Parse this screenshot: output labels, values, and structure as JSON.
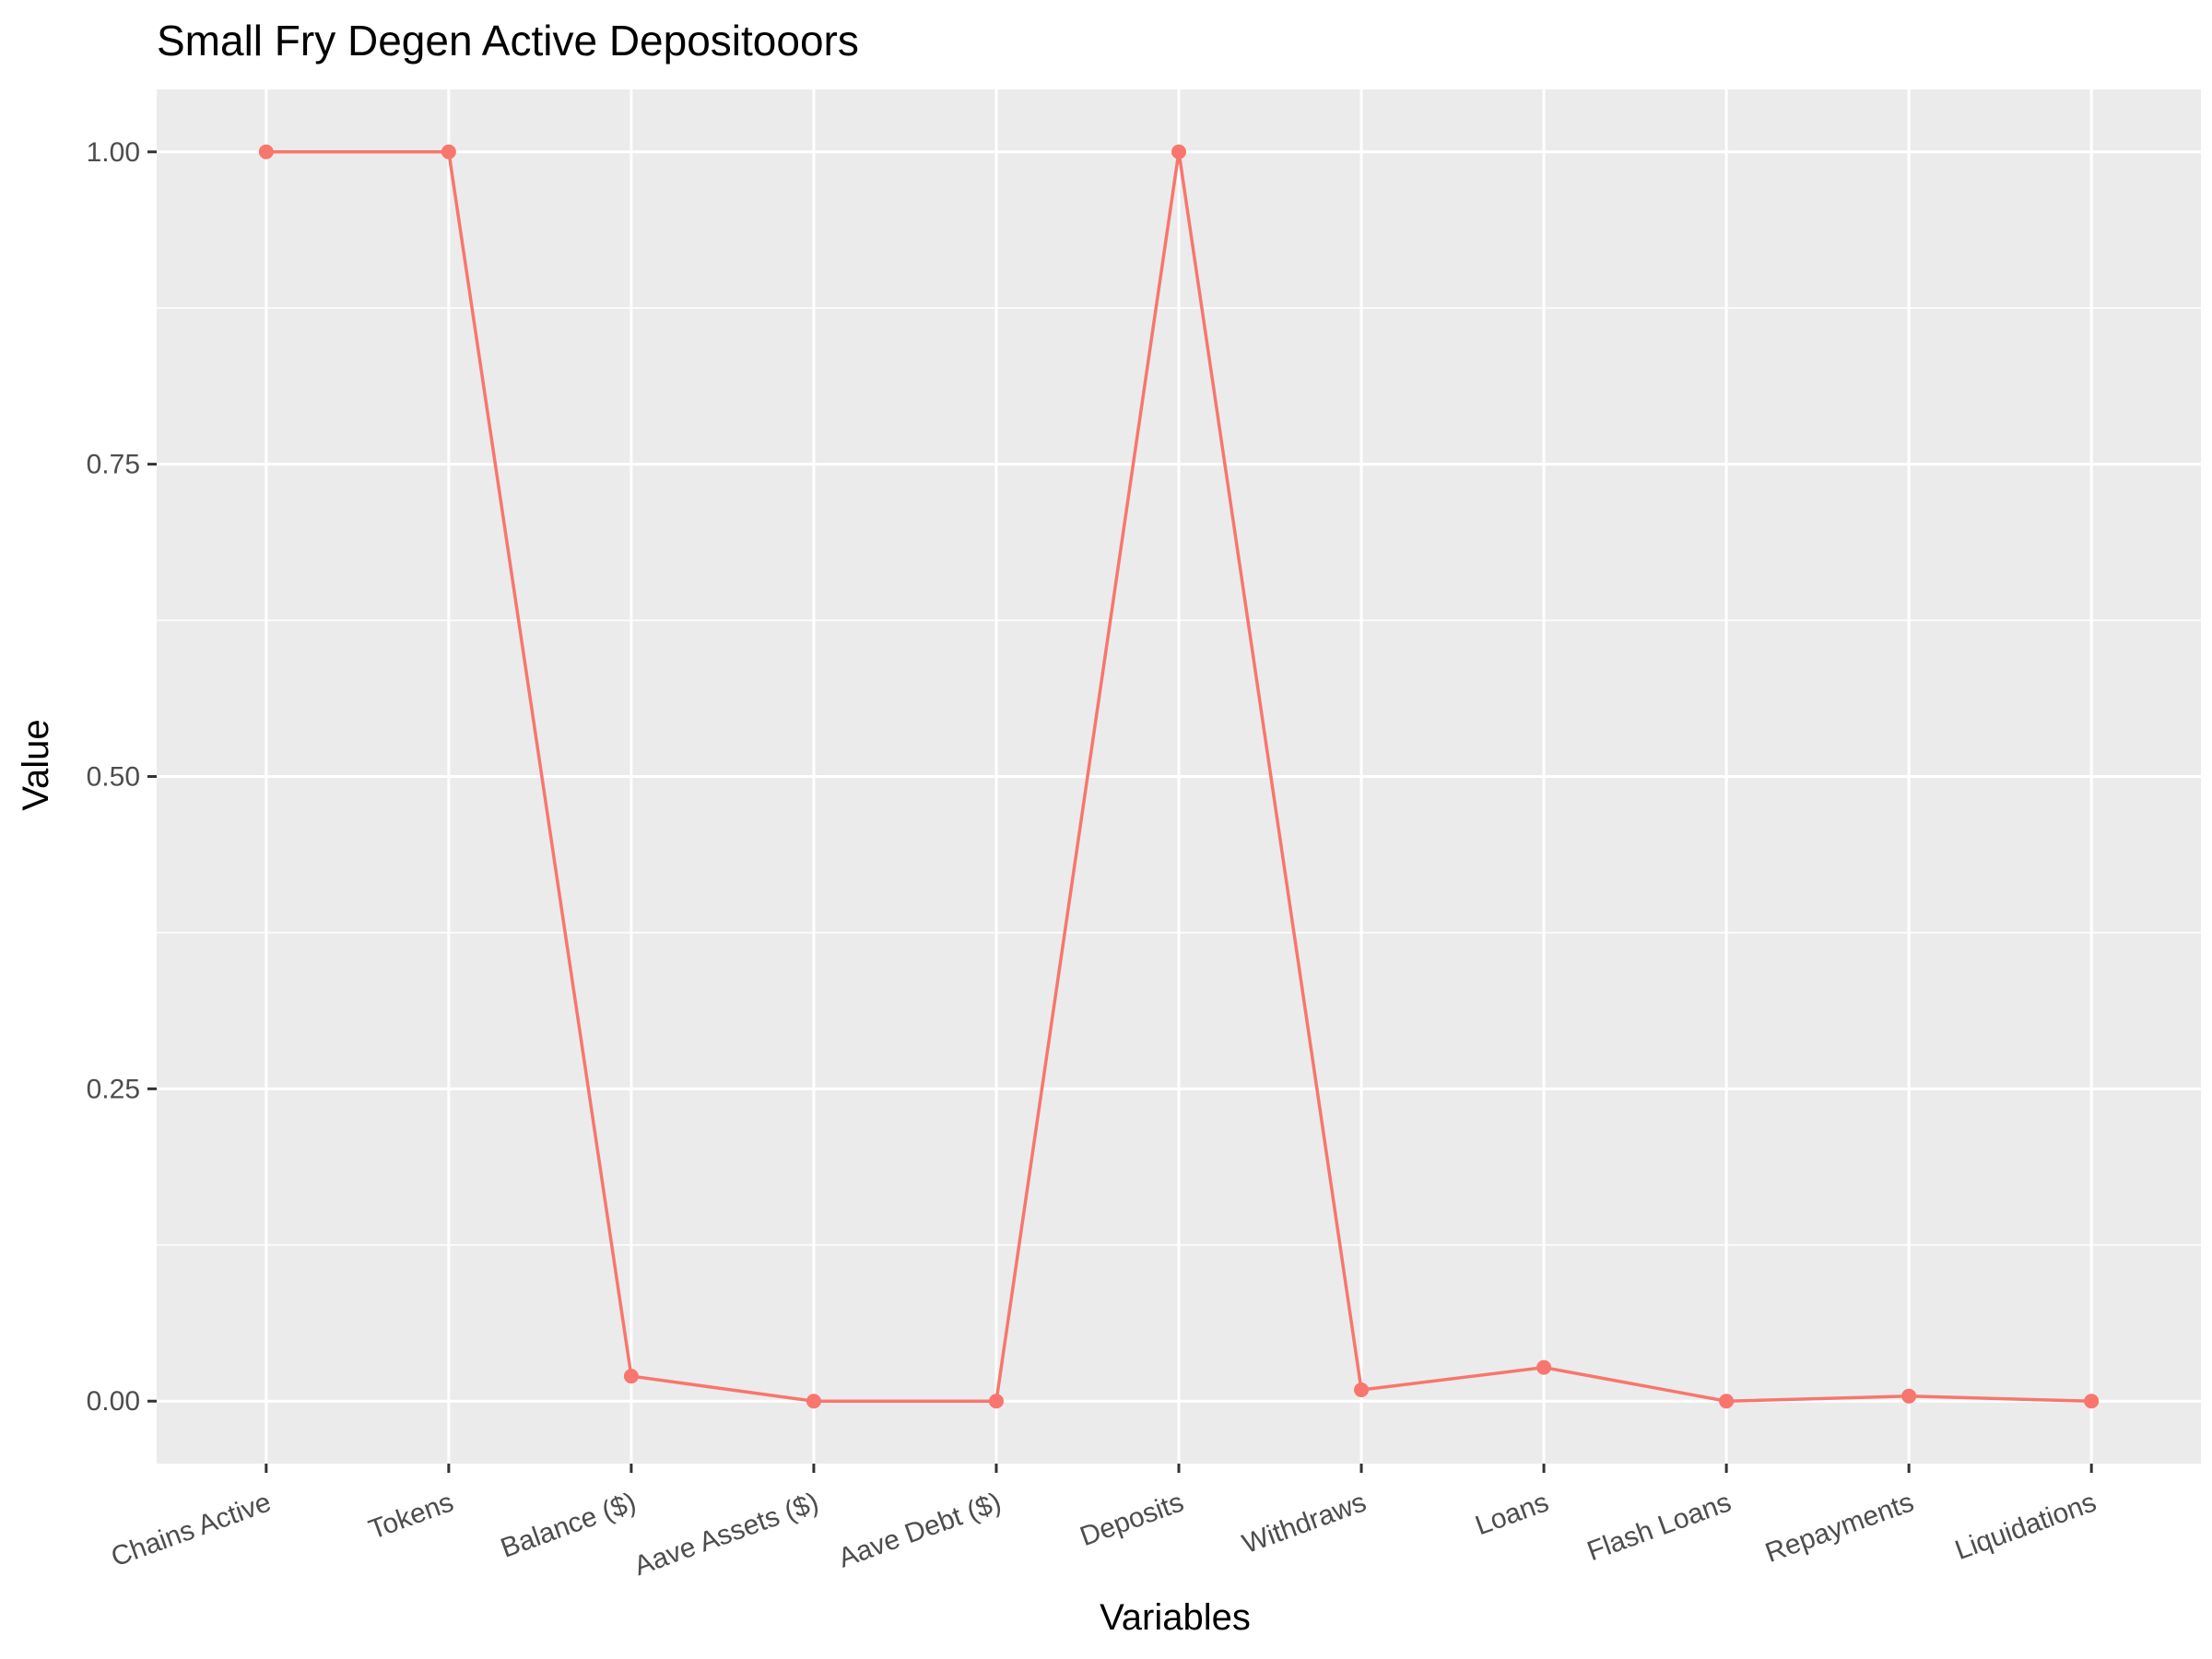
{
  "chart_data": {
    "type": "line",
    "title": "Small Fry Degen Active Depositooors",
    "xlabel": "Variables",
    "ylabel": "Value",
    "categories": [
      "Chains Active",
      "Tokens",
      "Balance ($)",
      "Aave Assets ($)",
      "Aave Debt ($)",
      "Deposits",
      "Withdraws",
      "Loans",
      "Flash Loans",
      "Repayments",
      "Liquidations"
    ],
    "values": [
      1.0,
      1.0,
      0.02,
      0.0,
      0.0,
      1.0,
      0.009,
      0.027,
      0.0,
      0.004,
      0.0
    ],
    "ylim": [
      -0.05,
      1.05
    ],
    "yticks": [
      0.0,
      0.25,
      0.5,
      0.75,
      1.0
    ],
    "ytick_labels": [
      "0.00",
      "0.25",
      "0.50",
      "0.75",
      "1.00"
    ],
    "grid": true,
    "legend": "none",
    "line_color": "#F8766D",
    "panel_color": "#EBEBEB",
    "grid_color": "#FFFFFF"
  }
}
